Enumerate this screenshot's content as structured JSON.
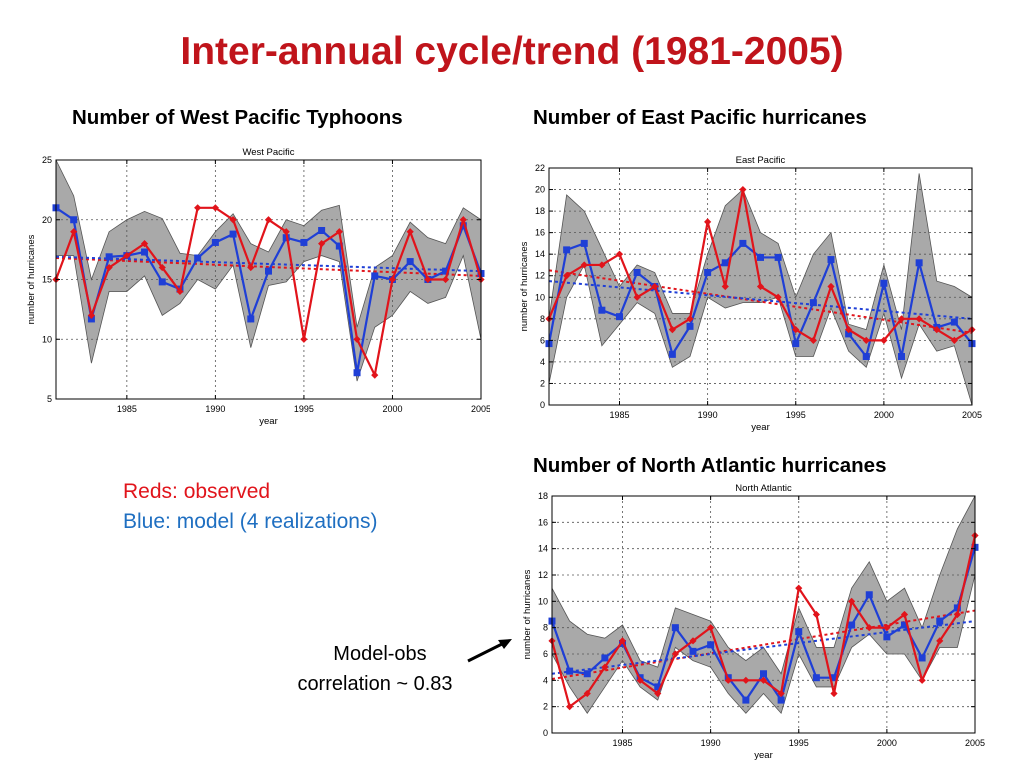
{
  "slide": {
    "title": "Inter-annual cycle/trend (1981-2005)",
    "legend_observed": "Reds: observed",
    "legend_model": "Blue: model (4 realizations)",
    "annotation_line1": "Model-obs",
    "annotation_line2": "correlation ~ 0.83"
  },
  "colors": {
    "title": "#c0141b",
    "observed": "#e1141b",
    "model": "#1f3fd6",
    "model_legend_text": "#1f6fc1",
    "spread_fill": "#a9a9a9"
  },
  "chart_data": [
    {
      "id": "wp",
      "heading": "Number of West Pacific Typhoons",
      "type": "line",
      "title": "West Pacific",
      "xlabel": "year",
      "ylabel": "number of hurricanes",
      "xlim": [
        1981,
        2005
      ],
      "ylim": [
        5,
        25
      ],
      "xticks": [
        1985,
        1990,
        1995,
        2000,
        2005
      ],
      "yticks": [
        5,
        10,
        15,
        20,
        25
      ],
      "grid": true,
      "x": [
        1981,
        1982,
        1983,
        1984,
        1985,
        1986,
        1987,
        1988,
        1989,
        1990,
        1991,
        1992,
        1993,
        1994,
        1995,
        1996,
        1997,
        1998,
        1999,
        2000,
        2001,
        2002,
        2003,
        2004,
        2005
      ],
      "series": [
        {
          "role": "observed",
          "values": [
            15,
            19,
            12,
            16,
            17,
            18,
            16,
            14,
            21,
            21,
            20,
            16,
            20,
            19,
            10,
            18,
            19,
            10,
            7,
            15,
            19,
            15,
            15,
            20,
            15
          ]
        },
        {
          "role": "model",
          "values": [
            21,
            20,
            11.7,
            16.9,
            17,
            17.3,
            14.8,
            14.2,
            16.8,
            18.1,
            18.8,
            11.7,
            15.7,
            18.5,
            18.1,
            19.1,
            17.8,
            7.2,
            15.3,
            15,
            16.5,
            15,
            15.7,
            19.5,
            15.5
          ]
        },
        {
          "role": "spread",
          "upper": [
            25,
            22,
            15,
            19,
            20,
            20.7,
            20.1,
            17.2,
            17,
            19,
            20.5,
            18,
            17.3,
            20,
            19.5,
            20.8,
            21.2,
            11,
            16,
            17,
            19.8,
            18.5,
            18,
            21,
            20
          ],
          "lower": [
            17,
            17,
            8,
            14,
            14,
            15.3,
            12,
            13,
            15,
            14.2,
            16.2,
            9.3,
            14.5,
            14.8,
            16.5,
            17,
            16.5,
            6.5,
            11,
            12,
            14,
            13,
            13.5,
            17,
            10
          ]
        },
        {
          "role": "observed_trend",
          "y_start": 16.8,
          "y_end": 15.3
        },
        {
          "role": "model_trend",
          "y_start": 16.9,
          "y_end": 15.7
        }
      ]
    },
    {
      "id": "ep",
      "heading": "Number of East Pacific hurricanes",
      "type": "line",
      "title": "East Pacific",
      "xlabel": "year",
      "ylabel": "number of hurricanes",
      "xlim": [
        1981,
        2005
      ],
      "ylim": [
        0,
        22
      ],
      "xticks": [
        1985,
        1990,
        1995,
        2000,
        2005
      ],
      "yticks": [
        0,
        2,
        4,
        6,
        8,
        10,
        12,
        14,
        16,
        18,
        20,
        22
      ],
      "grid": true,
      "x": [
        1981,
        1982,
        1983,
        1984,
        1985,
        1986,
        1987,
        1988,
        1989,
        1990,
        1991,
        1992,
        1993,
        1994,
        1995,
        1996,
        1997,
        1998,
        1999,
        2000,
        2001,
        2002,
        2003,
        2004,
        2005
      ],
      "series": [
        {
          "role": "observed",
          "values": [
            8,
            12,
            13,
            13,
            14,
            10,
            11,
            7,
            8,
            17,
            11,
            20,
            11,
            10,
            7,
            6,
            11,
            7,
            6,
            6,
            8,
            8,
            7,
            6,
            7
          ]
        },
        {
          "role": "model",
          "values": [
            5.7,
            14.4,
            15,
            8.8,
            8.2,
            12.3,
            11,
            4.7,
            7.3,
            12.3,
            13.2,
            15,
            13.7,
            13.7,
            5.7,
            9.5,
            13.5,
            6.6,
            4.5,
            11.3,
            4.5,
            13.2,
            7.2,
            7.7,
            5.7
          ]
        },
        {
          "role": "spread",
          "upper": [
            8,
            19.5,
            18,
            14.5,
            11,
            13,
            12.3,
            8.5,
            8.5,
            14,
            18.5,
            20,
            16,
            15,
            10,
            14,
            16,
            7.5,
            7,
            13,
            7,
            21.5,
            11.5,
            11,
            10
          ],
          "lower": [
            2,
            10,
            13,
            5.5,
            7.5,
            9.5,
            8.5,
            3.5,
            4.5,
            10,
            9,
            9.5,
            9.5,
            10,
            4.5,
            4.5,
            9,
            5,
            3.5,
            8.5,
            2.5,
            7.5,
            5,
            5.5,
            0
          ]
        },
        {
          "role": "observed_trend",
          "y_start": 12.5,
          "y_end": 6.7
        },
        {
          "role": "model_trend",
          "y_start": 11.5,
          "y_end": 8
        }
      ]
    },
    {
      "id": "na",
      "heading": "Number of North Atlantic hurricanes",
      "type": "line",
      "title": "North Atlantic",
      "xlabel": "year",
      "ylabel": "number of hurricanes",
      "xlim": [
        1981,
        2005
      ],
      "ylim": [
        0,
        18
      ],
      "xticks": [
        1985,
        1990,
        1995,
        2000,
        2005
      ],
      "yticks": [
        0,
        2,
        4,
        6,
        8,
        10,
        12,
        14,
        16,
        18
      ],
      "grid": true,
      "x": [
        1981,
        1982,
        1983,
        1984,
        1985,
        1986,
        1987,
        1988,
        1989,
        1990,
        1991,
        1992,
        1993,
        1994,
        1995,
        1996,
        1997,
        1998,
        1999,
        2000,
        2001,
        2002,
        2003,
        2004,
        2005
      ],
      "series": [
        {
          "role": "observed",
          "values": [
            7,
            2,
            3,
            5,
            7,
            4,
            3,
            6,
            7,
            8,
            4,
            4,
            4,
            3,
            11,
            9,
            3,
            10,
            8,
            8,
            9,
            4,
            7,
            9,
            15
          ]
        },
        {
          "role": "model",
          "values": [
            8.5,
            4.7,
            4.5,
            5.7,
            6.8,
            4.2,
            3.5,
            8,
            6.2,
            6.7,
            4.2,
            2.5,
            4.5,
            2.5,
            7.7,
            4.2,
            4.2,
            8.2,
            10.5,
            7.3,
            8.2,
            5.7,
            8.5,
            9.5,
            14.1
          ]
        },
        {
          "role": "spread",
          "upper": [
            11,
            8.5,
            7.5,
            7.2,
            8.2,
            5.5,
            5,
            9.5,
            9,
            8.5,
            6.5,
            5.5,
            6.5,
            4.5,
            9.5,
            6.5,
            6.5,
            11,
            13,
            10,
            11,
            8,
            12,
            15.5,
            18
          ],
          "lower": [
            6,
            3.5,
            1.5,
            3.5,
            5.5,
            3.5,
            2.5,
            6.5,
            5.5,
            5,
            3,
            1.5,
            3,
            1.5,
            6,
            3.5,
            3.5,
            6.5,
            7.5,
            6,
            6,
            4,
            6.5,
            6.5,
            12
          ]
        },
        {
          "role": "observed_trend",
          "y_start": 4.1,
          "y_end": 9.3
        },
        {
          "role": "model_trend",
          "y_start": 4.5,
          "y_end": 8.5
        }
      ]
    }
  ]
}
